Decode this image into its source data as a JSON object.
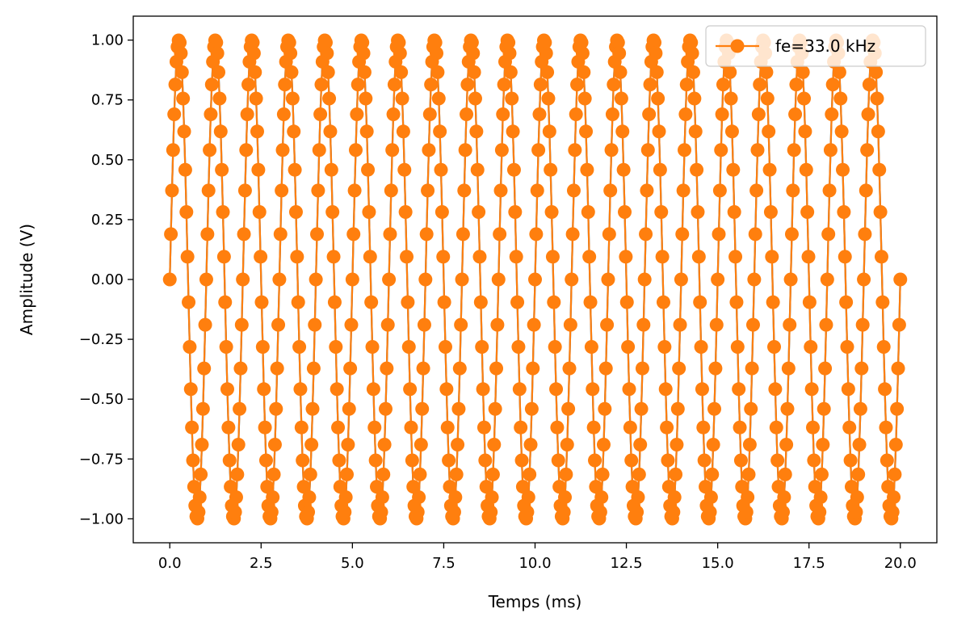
{
  "chart_data": {
    "type": "line",
    "xlabel": "Temps (ms)",
    "ylabel": "Amplitude (V)",
    "xlim": [
      -1.0,
      21.0
    ],
    "ylim": [
      -1.1,
      1.1
    ],
    "x_ticks": [
      0.0,
      2.5,
      5.0,
      7.5,
      10.0,
      12.5,
      15.0,
      17.5,
      20.0
    ],
    "x_tick_labels": [
      "0.0",
      "2.5",
      "5.0",
      "7.5",
      "10.0",
      "12.5",
      "15.0",
      "17.5",
      "20.0"
    ],
    "y_ticks": [
      -1.0,
      -0.75,
      -0.5,
      -0.25,
      0.0,
      0.25,
      0.5,
      0.75,
      1.0
    ],
    "y_tick_labels": [
      "−1.00",
      "−0.75",
      "−0.50",
      "−0.25",
      "0.00",
      "0.25",
      "0.50",
      "0.75",
      "1.00"
    ],
    "grid": false,
    "legend_position": "top-right",
    "series": [
      {
        "name": "",
        "color": "#1f77b4",
        "style": "line",
        "signal": "sine",
        "frequency_khz": 1.0,
        "amplitude": 1.0,
        "x_range": [
          0,
          20
        ]
      },
      {
        "name": "fe=33.0 kHz",
        "color": "#ff7f0e",
        "style": "line-markers",
        "signal": "sine",
        "frequency_khz": 1.0,
        "amplitude": 1.0,
        "sampling_frequency_khz": 33.0,
        "x_range": [
          0,
          20
        ]
      }
    ]
  }
}
